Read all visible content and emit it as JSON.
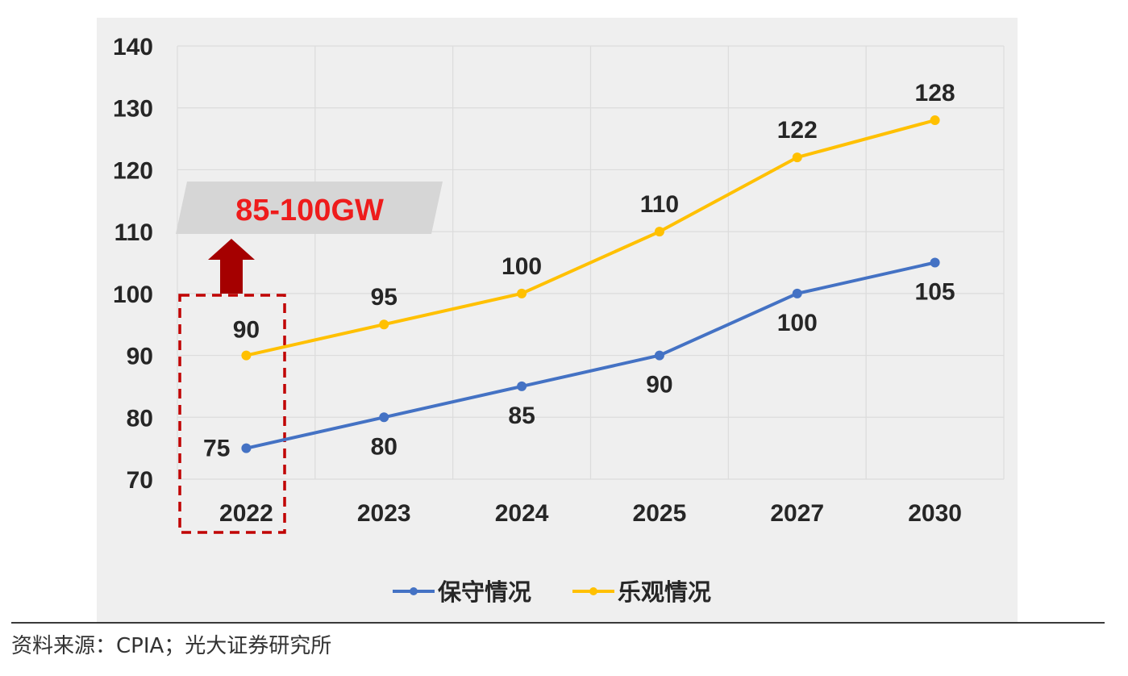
{
  "chart_data": {
    "type": "line",
    "title": "",
    "xlabel": "",
    "ylabel": "",
    "categories": [
      "2022",
      "2023",
      "2024",
      "2025",
      "2027",
      "2030"
    ],
    "ylim": [
      70,
      140
    ],
    "yticks": [
      "70",
      "80",
      "90",
      "100",
      "110",
      "120",
      "130",
      "140"
    ],
    "grid": true,
    "legend_position": "bottom",
    "series": [
      {
        "name": "保守情况",
        "color": "#4472c4",
        "values": [
          75,
          80,
          85,
          90,
          100,
          105
        ],
        "label_position": "below"
      },
      {
        "name": "乐观情况",
        "color": "#ffc000",
        "values": [
          90,
          95,
          100,
          110,
          122,
          128
        ],
        "label_position": "above"
      }
    ],
    "annotations": {
      "highlight_category": "2022",
      "callout_text": "85-100GW",
      "callout_color": "#ee1c1c",
      "box_color": "#c00000",
      "arrow_color": "#a50000"
    }
  },
  "footer": {
    "source": "资料来源：CPIA；光大证券研究所"
  }
}
